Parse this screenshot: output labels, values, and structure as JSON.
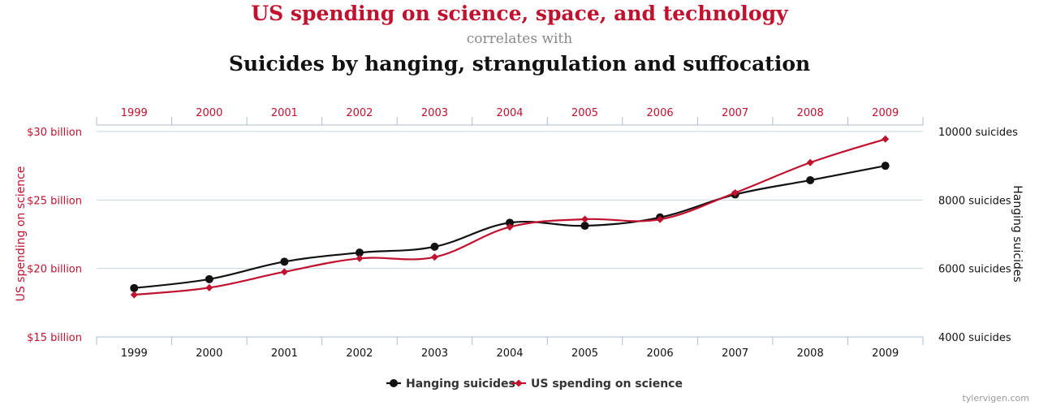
{
  "header": {
    "title_line1": "US spending on science, space, and technology",
    "title_line2": "correlates with",
    "title_line3": "Suicides by hanging, strangulation and suffocation"
  },
  "colors": {
    "science": "#c0112e",
    "hanging": "#111111",
    "grid": "#c8d6e5",
    "axis": "#a9bcd0"
  },
  "chart_data": {
    "type": "line",
    "categories": [
      "1999",
      "2000",
      "2001",
      "2002",
      "2003",
      "2004",
      "2005",
      "2006",
      "2007",
      "2008",
      "2009"
    ],
    "series": [
      {
        "name": "Hanging suicides",
        "axis": "right",
        "marker": "circle",
        "values": [
          5427,
          5688,
          6198,
          6462,
          6635,
          7336,
          7248,
          7491,
          8161,
          8578,
          9000
        ]
      },
      {
        "name": "US spending on science",
        "axis": "left",
        "marker": "diamond",
        "values": [
          18.079,
          18.594,
          19.753,
          20.734,
          20.831,
          23.029,
          23.597,
          23.584,
          25.525,
          27.731,
          29.449
        ]
      }
    ],
    "y_left": {
      "label": "US spending on science",
      "ticks": [
        "$15 billion",
        "$20 billion",
        "$25 billion",
        "$30 billion"
      ],
      "range": [
        15,
        30
      ]
    },
    "y_right": {
      "label": "Hanging suicides",
      "ticks": [
        "4000 suicides",
        "6000 suicides",
        "8000 suicides",
        "10000 suicides"
      ],
      "range": [
        4000,
        10000
      ]
    },
    "legend": [
      "Hanging suicides",
      "US spending on science"
    ],
    "legend_position": "bottom-center",
    "grid": true
  },
  "watermark": "tylervigen.com"
}
